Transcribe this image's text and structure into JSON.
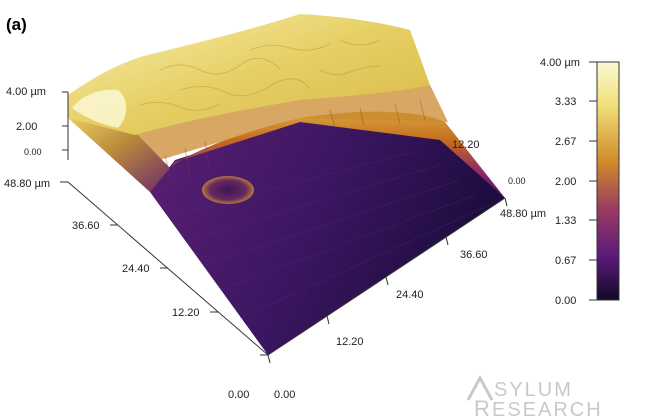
{
  "panel_label": "(a)",
  "units": "µm",
  "colors": {
    "high": "#f6f3b8",
    "upper": "#e8d060",
    "mid_orange": "#c46a1e",
    "mid_magenta": "#8a2a6c",
    "low": "#1a0c3a"
  },
  "z_axis": {
    "labels": [
      "4.00 µm",
      "2.00",
      "0.00"
    ]
  },
  "left_axis": {
    "labels": [
      "48.80 µm",
      "36.60",
      "24.40",
      "12.20",
      "0.00"
    ]
  },
  "right_axis": {
    "labels": [
      "48.80 µm",
      "36.60",
      "24.40",
      "12.20",
      "0.00"
    ]
  },
  "back_axis": {
    "labels": [
      "12.20",
      "0.00"
    ]
  },
  "colorbar": {
    "labels": [
      "4.00 µm",
      "3.33",
      "2.67",
      "2.00",
      "1.33",
      "0.67",
      "0.00"
    ],
    "range": [
      0.0,
      4.0
    ]
  },
  "watermark": {
    "line1": "SYLUM",
    "line2": "ESEARCH"
  }
}
